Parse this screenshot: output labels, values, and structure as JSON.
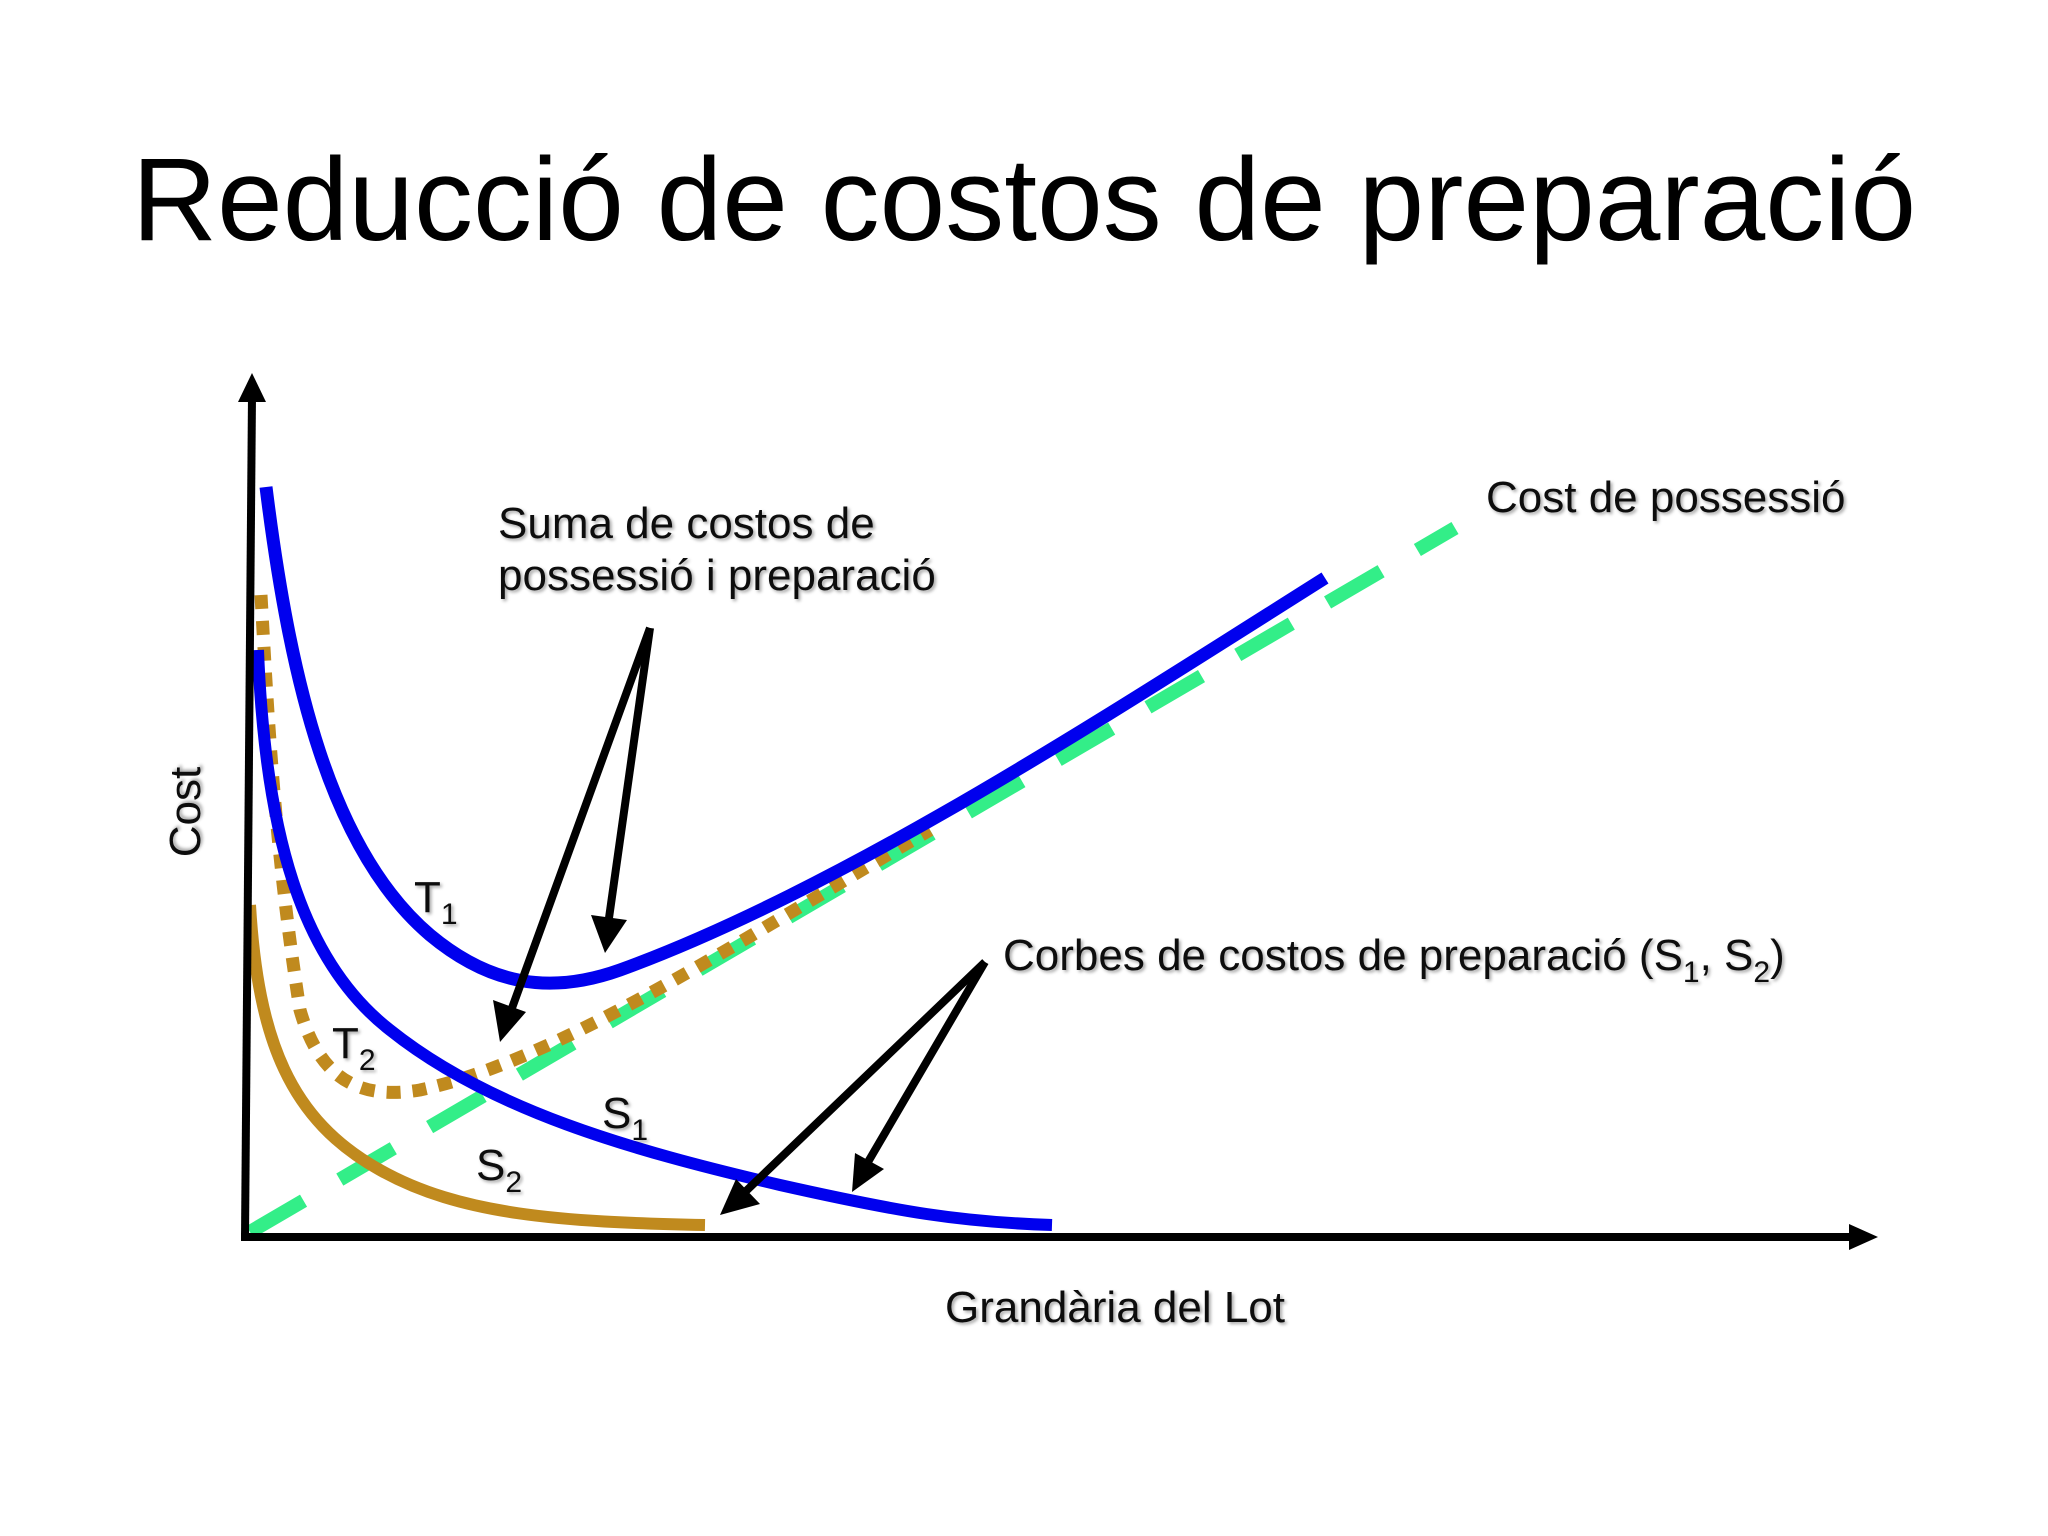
{
  "title": "Reducció de costos de preparació",
  "axes": {
    "y_label": "Cost",
    "x_label": "Grandària del Lot"
  },
  "annotations": {
    "total_cost_line1": "Suma de costos de",
    "total_cost_line2": "possessió i preparació",
    "holding_cost": "Cost de possessió",
    "setup_curves_main": "Corbes de costos de preparació (S",
    "setup_curves_sub1": "1",
    "setup_curves_sep": ", S",
    "setup_curves_sub2": "2",
    "setup_curves_end": ")"
  },
  "curve_labels": {
    "T1": {
      "main": "T",
      "sub": "1"
    },
    "T2": {
      "main": "T",
      "sub": "2"
    },
    "S1": {
      "main": "S",
      "sub": "1"
    },
    "S2": {
      "main": "S",
      "sub": "2"
    }
  },
  "colors": {
    "total_cost_T1": "#0000ee",
    "setup_cost_S1": "#0000ee",
    "total_cost_T2": "#c08a1e",
    "setup_cost_S2": "#c08a1e",
    "holding_cost": "#33ee88",
    "axes": "#000000",
    "arrows": "#000000"
  }
}
